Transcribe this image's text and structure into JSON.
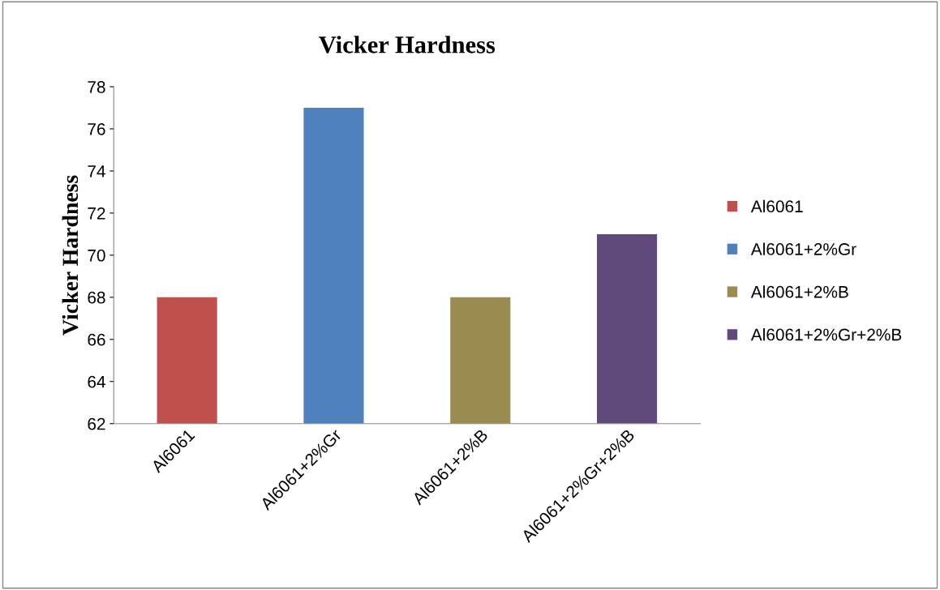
{
  "chart_data": {
    "type": "bar",
    "title": "Vicker Hardness",
    "ylabel": "Vicker Hardness",
    "categories": [
      "Al6061",
      "Al6061+2%Gr",
      "Al6061+2%B",
      "Al6061+2%Gr+2%B"
    ],
    "series": [
      {
        "name": "Al6061",
        "color": "#c0504d",
        "values": [
          68,
          null,
          null,
          null
        ]
      },
      {
        "name": "Al6061+2%Gr",
        "color": "#4f81bd",
        "values": [
          null,
          77,
          null,
          null
        ]
      },
      {
        "name": "Al6061+2%B",
        "color": "#9b8b50",
        "values": [
          null,
          null,
          68,
          null
        ]
      },
      {
        "name": "Al6061+2%Gr+2%B",
        "color": "#604a7b",
        "values": [
          null,
          null,
          null,
          71
        ]
      }
    ],
    "ylim": [
      62,
      78
    ],
    "yticks": [
      62,
      64,
      66,
      68,
      70,
      72,
      74,
      76,
      78
    ],
    "grid": false,
    "legend": "right"
  }
}
